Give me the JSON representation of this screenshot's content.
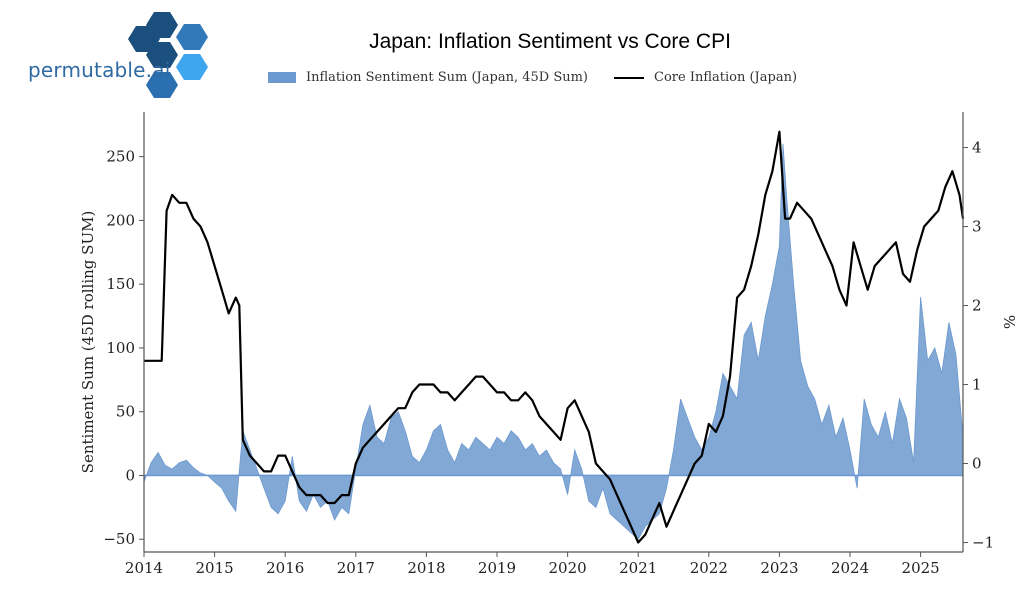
{
  "brand": {
    "name": "permutable.ai",
    "colors": [
      "#1b4f7e",
      "#3279ba",
      "#2a8ad0",
      "#3ea6ee"
    ]
  },
  "chart_data": {
    "type": "bar+line",
    "title": "Japan: Inflation Sentiment vs Core CPI",
    "xlabel": "",
    "ylabel": "Sentiment Sum (45D rolling SUM)",
    "y2label": "%",
    "xlim": [
      2014.0,
      2025.6
    ],
    "ylim": [
      -60,
      285
    ],
    "y2lim": [
      -1.12,
      4.45
    ],
    "xticks": [
      2014,
      2015,
      2016,
      2017,
      2018,
      2019,
      2020,
      2021,
      2022,
      2023,
      2024,
      2025
    ],
    "yticks": [
      -50,
      0,
      50,
      100,
      150,
      200,
      250
    ],
    "y2ticks": [
      -1,
      0,
      1,
      2,
      3,
      4
    ],
    "legend_position": "top",
    "grid": false,
    "series": [
      {
        "name": "Inflation Sentiment Sum (Japan, 45D Sum)",
        "kind": "area",
        "color": "#6c99cf",
        "axis": "left",
        "x": [
          2014.0,
          2014.1,
          2014.2,
          2014.3,
          2014.4,
          2014.5,
          2014.6,
          2014.7,
          2014.8,
          2014.9,
          2015.0,
          2015.1,
          2015.2,
          2015.3,
          2015.4,
          2015.5,
          2015.6,
          2015.7,
          2015.8,
          2015.9,
          2016.0,
          2016.1,
          2016.2,
          2016.3,
          2016.4,
          2016.5,
          2016.6,
          2016.7,
          2016.8,
          2016.9,
          2017.0,
          2017.1,
          2017.2,
          2017.3,
          2017.4,
          2017.5,
          2017.6,
          2017.7,
          2017.8,
          2017.9,
          2018.0,
          2018.1,
          2018.2,
          2018.3,
          2018.4,
          2018.5,
          2018.6,
          2018.7,
          2018.8,
          2018.9,
          2019.0,
          2019.1,
          2019.2,
          2019.3,
          2019.4,
          2019.5,
          2019.6,
          2019.7,
          2019.8,
          2019.9,
          2020.0,
          2020.1,
          2020.2,
          2020.3,
          2020.4,
          2020.5,
          2020.6,
          2020.7,
          2020.8,
          2020.9,
          2021.0,
          2021.1,
          2021.2,
          2021.3,
          2021.4,
          2021.5,
          2021.6,
          2021.7,
          2021.8,
          2021.9,
          2022.0,
          2022.1,
          2022.2,
          2022.3,
          2022.4,
          2022.5,
          2022.6,
          2022.7,
          2022.8,
          2022.9,
          2023.0,
          2023.05,
          2023.1,
          2023.2,
          2023.3,
          2023.4,
          2023.5,
          2023.6,
          2023.7,
          2023.8,
          2023.9,
          2024.0,
          2024.1,
          2024.2,
          2024.3,
          2024.4,
          2024.5,
          2024.6,
          2024.7,
          2024.8,
          2024.9,
          2025.0,
          2025.1,
          2025.2,
          2025.3,
          2025.4,
          2025.5,
          2025.6
        ],
        "values": [
          -5,
          10,
          18,
          8,
          5,
          10,
          12,
          6,
          2,
          0,
          -5,
          -10,
          -20,
          -28,
          35,
          20,
          5,
          -10,
          -25,
          -30,
          -20,
          15,
          -20,
          -28,
          -15,
          -25,
          -20,
          -35,
          -25,
          -30,
          5,
          40,
          55,
          30,
          25,
          45,
          50,
          35,
          15,
          10,
          20,
          35,
          40,
          20,
          10,
          25,
          20,
          30,
          25,
          20,
          30,
          25,
          35,
          30,
          20,
          25,
          15,
          20,
          10,
          5,
          -15,
          20,
          5,
          -20,
          -25,
          -10,
          -30,
          -35,
          -40,
          -45,
          -50,
          -40,
          -35,
          -30,
          -10,
          20,
          60,
          45,
          30,
          20,
          30,
          50,
          80,
          70,
          60,
          110,
          120,
          90,
          125,
          150,
          180,
          260,
          220,
          150,
          90,
          70,
          60,
          40,
          55,
          30,
          45,
          20,
          -10,
          60,
          40,
          30,
          50,
          25,
          60,
          45,
          10,
          140,
          90,
          100,
          80,
          120,
          95,
          30
        ]
      },
      {
        "name": "Core Inflation (Japan)",
        "kind": "line",
        "color": "#000000",
        "axis": "right",
        "x": [
          2014.0,
          2014.25,
          2014.32,
          2014.4,
          2014.5,
          2014.6,
          2014.7,
          2014.8,
          2014.9,
          2015.0,
          2015.1,
          2015.2,
          2015.3,
          2015.35,
          2015.4,
          2015.5,
          2015.6,
          2015.7,
          2015.8,
          2015.9,
          2016.0,
          2016.1,
          2016.2,
          2016.3,
          2016.4,
          2016.5,
          2016.6,
          2016.7,
          2016.8,
          2016.9,
          2017.0,
          2017.1,
          2017.2,
          2017.3,
          2017.4,
          2017.5,
          2017.6,
          2017.7,
          2017.8,
          2017.9,
          2018.0,
          2018.1,
          2018.2,
          2018.3,
          2018.4,
          2018.5,
          2018.6,
          2018.7,
          2018.8,
          2018.9,
          2019.0,
          2019.1,
          2019.2,
          2019.3,
          2019.4,
          2019.5,
          2019.6,
          2019.7,
          2019.8,
          2019.9,
          2020.0,
          2020.1,
          2020.2,
          2020.3,
          2020.4,
          2020.5,
          2020.6,
          2020.7,
          2020.8,
          2020.9,
          2021.0,
          2021.1,
          2021.2,
          2021.3,
          2021.4,
          2021.5,
          2021.6,
          2021.7,
          2021.8,
          2021.9,
          2022.0,
          2022.1,
          2022.2,
          2022.3,
          2022.4,
          2022.5,
          2022.6,
          2022.7,
          2022.8,
          2022.9,
          2023.0,
          2023.08,
          2023.15,
          2023.25,
          2023.35,
          2023.45,
          2023.55,
          2023.65,
          2023.75,
          2023.85,
          2023.95,
          2024.05,
          2024.15,
          2024.25,
          2024.35,
          2024.45,
          2024.55,
          2024.65,
          2024.75,
          2024.85,
          2024.95,
          2025.05,
          2025.15,
          2025.25,
          2025.35,
          2025.45,
          2025.55,
          2025.6
        ],
        "values": [
          1.3,
          1.3,
          3.2,
          3.4,
          3.3,
          3.3,
          3.1,
          3.0,
          2.8,
          2.5,
          2.2,
          1.9,
          2.1,
          2.0,
          0.3,
          0.1,
          0.0,
          -0.1,
          -0.1,
          0.1,
          0.1,
          -0.1,
          -0.3,
          -0.4,
          -0.4,
          -0.4,
          -0.5,
          -0.5,
          -0.4,
          -0.4,
          0.0,
          0.2,
          0.3,
          0.4,
          0.5,
          0.6,
          0.7,
          0.7,
          0.9,
          1.0,
          1.0,
          1.0,
          0.9,
          0.9,
          0.8,
          0.9,
          1.0,
          1.1,
          1.1,
          1.0,
          0.9,
          0.9,
          0.8,
          0.8,
          0.9,
          0.8,
          0.6,
          0.5,
          0.4,
          0.3,
          0.7,
          0.8,
          0.6,
          0.4,
          0.0,
          -0.1,
          -0.2,
          -0.4,
          -0.6,
          -0.8,
          -1.0,
          -0.9,
          -0.7,
          -0.5,
          -0.8,
          -0.6,
          -0.4,
          -0.2,
          0.0,
          0.1,
          0.5,
          0.4,
          0.6,
          1.1,
          2.1,
          2.2,
          2.5,
          2.9,
          3.4,
          3.7,
          4.2,
          3.1,
          3.1,
          3.3,
          3.2,
          3.1,
          2.9,
          2.7,
          2.5,
          2.2,
          2.0,
          2.8,
          2.5,
          2.2,
          2.5,
          2.6,
          2.7,
          2.8,
          2.4,
          2.3,
          2.7,
          3.0,
          3.1,
          3.2,
          3.5,
          3.7,
          3.4,
          3.1
        ]
      }
    ]
  }
}
